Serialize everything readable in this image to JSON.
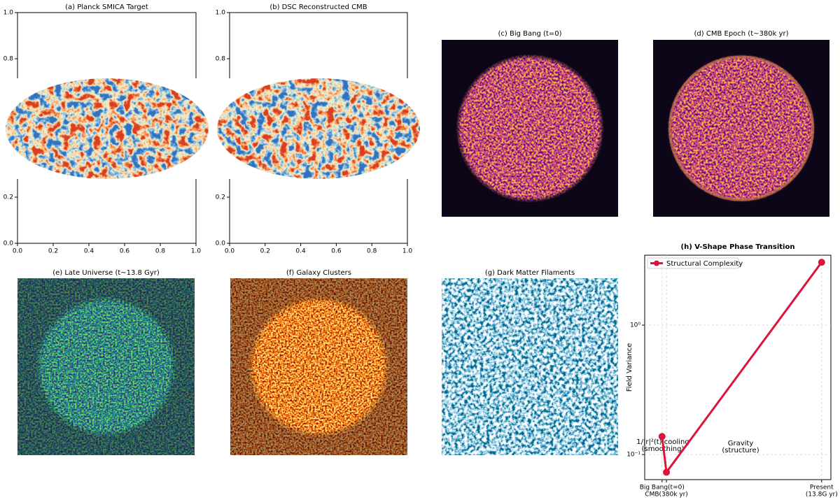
{
  "chart_data": [
    {
      "type": "image",
      "title": "(a) Planck SMICA Target",
      "colormap": "RdYlBu_r",
      "xlim": [
        0,
        1
      ],
      "ylim": [
        0,
        1
      ],
      "xticks": [
        {
          "value": 0,
          "label": "0.0"
        },
        0.2,
        0.4,
        0.6,
        0.8,
        {
          "value": 1,
          "label": "1.0"
        }
      ],
      "yticks": [
        {
          "value": 0,
          "label": "0.0"
        },
        0.2,
        0.8,
        {
          "value": 1,
          "label": "1.0"
        }
      ]
    },
    {
      "type": "image",
      "title": "(b) DSC Reconstructed CMB",
      "colormap": "RdYlBu_r",
      "xlim": [
        0,
        1
      ],
      "ylim": [
        0,
        1
      ],
      "xticks": [
        {
          "value": 0,
          "label": "0.0"
        },
        0.2,
        0.4,
        0.6,
        0.8,
        {
          "value": 1,
          "label": "1.0"
        }
      ],
      "yticks": [
        {
          "value": 0,
          "label": "0.0"
        },
        0.2,
        0.8,
        {
          "value": 1,
          "label": "1.0"
        }
      ]
    },
    {
      "type": "image",
      "title": "(c) Big Bang (t=0)",
      "colormap": "plasma"
    },
    {
      "type": "image",
      "title": "(d) CMB Epoch (t~380k yr)",
      "colormap": "plasma"
    },
    {
      "type": "image",
      "title": "(e) Late Universe (t~13.8 Gyr)",
      "colormap": "viridis"
    },
    {
      "type": "image",
      "title": "(f) Galaxy Clusters",
      "colormap": "afmhot"
    },
    {
      "type": "image",
      "title": "(g) Dark Matter Filaments",
      "colormap": "ocean"
    },
    {
      "type": "line",
      "title": "(h) V-Shape Phase Transition",
      "ylabel": "Field Variance",
      "yscale": "log",
      "grid": true,
      "legend": "upper left",
      "x": [
        0,
        0.38,
        13.8
      ],
      "xlim": [
        -1.5,
        14.6
      ],
      "ylim": [
        0.064,
        3.47
      ],
      "xticks": [
        {
          "value": 0,
          "label": [
            "Big Bang(t=0)"
          ]
        },
        {
          "value": 0.38,
          "label": [
            "CMB(380k yr)"
          ]
        },
        {
          "value": 13.8,
          "label": [
            "Present",
            "(13.8G yr)"
          ]
        }
      ],
      "yticks": [
        {
          "value": 0.1,
          "label": "10⁻¹"
        },
        {
          "value": 1,
          "label": "10⁰"
        }
      ],
      "series": [
        {
          "name": "Structural Complexity",
          "color": "#dc143c",
          "values": [
            0.138,
            0.073,
            3.06
          ]
        }
      ],
      "annotations": [
        {
          "text": [
            "1/|r|²(t) cooling",
            "(smoothing)"
          ],
          "color": "#0000cd"
        },
        {
          "text": [
            "Gravity",
            "(structure)"
          ],
          "color": "#008000"
        }
      ]
    }
  ]
}
